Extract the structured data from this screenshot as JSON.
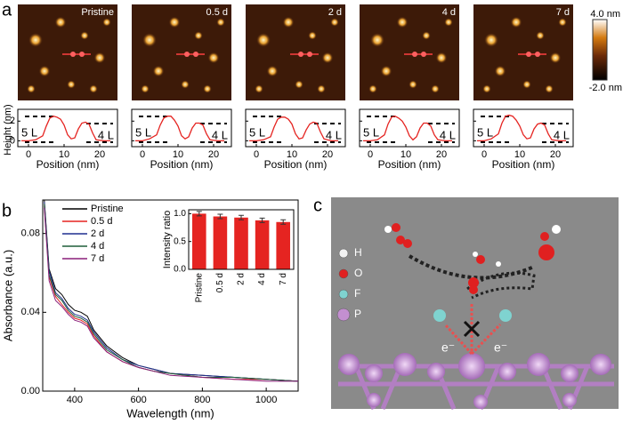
{
  "panel_labels": [
    "a",
    "b",
    "c"
  ],
  "afm": {
    "image_labels": [
      "Pristine",
      "0.5 d",
      "2 d",
      "4 d",
      "7 d"
    ],
    "colorbar": {
      "max_label": "4.0 nm",
      "min_label": "-2.0 nm"
    },
    "profile_y_label": "Height (nm)"
  },
  "chart_data": [
    {
      "type": "profile",
      "x_label": "Position (nm)",
      "xlim": [
        -3,
        25
      ],
      "xticks": [
        0,
        10,
        20
      ],
      "ylim": [
        -0.6,
        3.2
      ],
      "yticks": [
        0,
        2
      ],
      "annotations": [
        "5 L",
        "4 L"
      ],
      "x": [
        -2,
        0,
        2,
        4,
        5,
        6,
        7,
        8,
        9,
        10,
        11,
        12,
        13,
        14,
        15,
        16,
        17,
        18,
        19,
        21,
        23
      ],
      "series": [
        {
          "color": "#e52421",
          "values": [
            0,
            0,
            0.1,
            0.5,
            1.5,
            2.3,
            2.5,
            2.4,
            2.2,
            1.6,
            0.6,
            0.2,
            0.3,
            1.2,
            1.8,
            1.9,
            1.7,
            0.8,
            0.1,
            0,
            0
          ]
        }
      ]
    },
    {
      "type": "profile",
      "x_label": "Position (nm)",
      "xlim": [
        -3,
        25
      ],
      "xticks": [
        0,
        10,
        20
      ],
      "ylim": [
        -0.6,
        3.2
      ],
      "yticks": [
        0,
        2
      ],
      "annotations": [
        "5 L",
        "4 L"
      ],
      "x": [
        -2,
        0,
        2,
        4,
        5,
        6,
        7,
        8,
        9,
        10,
        11,
        12,
        13,
        14,
        15,
        16,
        17,
        18,
        19,
        21,
        23
      ],
      "series": [
        {
          "color": "#e52421",
          "values": [
            0,
            0,
            0.2,
            0.6,
            1.6,
            2.3,
            2.5,
            2.5,
            2.1,
            1.5,
            0.5,
            0.2,
            0.4,
            1.3,
            1.8,
            1.8,
            1.6,
            0.7,
            0.1,
            0,
            0
          ]
        }
      ]
    },
    {
      "type": "profile",
      "x_label": "Position (nm)",
      "xlim": [
        -3,
        25
      ],
      "xticks": [
        0,
        10,
        20
      ],
      "ylim": [
        -0.6,
        3.2
      ],
      "yticks": [
        0,
        2
      ],
      "annotations": [
        "5 L",
        "4 L"
      ],
      "x": [
        -2,
        0,
        2,
        4,
        5,
        6,
        7,
        8,
        9,
        10,
        11,
        12,
        13,
        14,
        15,
        16,
        17,
        18,
        19,
        21,
        23
      ],
      "series": [
        {
          "color": "#e52421",
          "values": [
            0,
            0,
            0.1,
            0.4,
            1.4,
            2.2,
            2.4,
            2.4,
            2.2,
            1.7,
            0.7,
            0.2,
            0.3,
            1.1,
            1.7,
            1.9,
            1.8,
            0.9,
            0.2,
            0,
            0
          ]
        }
      ]
    },
    {
      "type": "profile",
      "x_label": "Position (nm)",
      "xlim": [
        -3,
        25
      ],
      "xticks": [
        0,
        10,
        20
      ],
      "ylim": [
        -0.6,
        3.2
      ],
      "yticks": [
        0,
        2
      ],
      "annotations": [
        "5 L",
        "4 L"
      ],
      "x": [
        -2,
        0,
        2,
        4,
        5,
        6,
        7,
        8,
        9,
        10,
        11,
        12,
        13,
        14,
        15,
        16,
        17,
        18,
        19,
        21,
        23
      ],
      "series": [
        {
          "color": "#e52421",
          "values": [
            0,
            0,
            0.1,
            0.6,
            1.7,
            2.4,
            2.5,
            2.3,
            2.0,
            1.4,
            0.5,
            0.1,
            0.4,
            1.3,
            1.8,
            1.8,
            1.5,
            0.6,
            0.1,
            0,
            0
          ]
        }
      ]
    },
    {
      "type": "profile",
      "x_label": "Position (nm)",
      "xlim": [
        -3,
        25
      ],
      "xticks": [
        0,
        10,
        20
      ],
      "ylim": [
        -0.6,
        3.2
      ],
      "yticks": [
        0,
        2
      ],
      "annotations": [
        "5 L",
        "4 L"
      ],
      "x": [
        -2,
        0,
        2,
        4,
        5,
        6,
        7,
        8,
        9,
        10,
        11,
        12,
        13,
        14,
        15,
        16,
        17,
        18,
        19,
        21,
        23
      ],
      "series": [
        {
          "color": "#e52421",
          "values": [
            0,
            0,
            0.2,
            0.7,
            1.8,
            2.5,
            2.6,
            2.5,
            2.1,
            1.5,
            0.6,
            0.2,
            0.3,
            1.2,
            1.7,
            1.8,
            1.6,
            0.7,
            0.1,
            0,
            0
          ]
        }
      ]
    },
    {
      "type": "line",
      "x_label": "Wavelength (nm)",
      "y_label": "Absorbance (a.u.)",
      "xlim": [
        300,
        1100
      ],
      "xticks": [
        400,
        600,
        800,
        1000
      ],
      "ylim": [
        0,
        0.097
      ],
      "yticks": [
        {
          "value": 0,
          "label": "0.00"
        },
        0.04,
        0.08
      ],
      "legend": "upper-left",
      "x": [
        305,
        320,
        340,
        360,
        380,
        400,
        420,
        440,
        460,
        500,
        550,
        600,
        650,
        700,
        800,
        900,
        1000,
        1100
      ],
      "series": [
        {
          "name": "Pristine",
          "color": "#000000",
          "values": [
            0.097,
            0.062,
            0.052,
            0.049,
            0.044,
            0.041,
            0.04,
            0.038,
            0.031,
            0.023,
            0.017,
            0.013,
            0.011,
            0.009,
            0.008,
            0.007,
            0.006,
            0.005
          ]
        },
        {
          "name": "0.5 d",
          "color": "#e52421",
          "values": [
            0.094,
            0.058,
            0.048,
            0.044,
            0.04,
            0.037,
            0.036,
            0.034,
            0.028,
            0.02,
            0.015,
            0.012,
            0.01,
            0.009,
            0.007,
            0.006,
            0.006,
            0.005
          ]
        },
        {
          "name": "2 d",
          "color": "#1f2f8f",
          "values": [
            0.096,
            0.061,
            0.05,
            0.047,
            0.042,
            0.039,
            0.038,
            0.036,
            0.03,
            0.022,
            0.016,
            0.013,
            0.011,
            0.009,
            0.008,
            0.007,
            0.006,
            0.005
          ]
        },
        {
          "name": "4 d",
          "color": "#1e5e3a",
          "values": [
            0.095,
            0.059,
            0.049,
            0.046,
            0.041,
            0.038,
            0.037,
            0.035,
            0.029,
            0.021,
            0.016,
            0.012,
            0.01,
            0.009,
            0.007,
            0.007,
            0.006,
            0.005
          ]
        },
        {
          "name": "7 d",
          "color": "#8a1f7a",
          "values": [
            0.093,
            0.056,
            0.046,
            0.043,
            0.039,
            0.036,
            0.035,
            0.033,
            0.027,
            0.02,
            0.015,
            0.012,
            0.01,
            0.008,
            0.007,
            0.006,
            0.005,
            0.005
          ]
        }
      ]
    },
    {
      "type": "bar",
      "y_label": "Intensity ratio",
      "categories": [
        "Pristine",
        "0.5 d",
        "2 d",
        "4 d",
        "7 d"
      ],
      "values": [
        1.0,
        0.95,
        0.93,
        0.88,
        0.85
      ],
      "errors": [
        0.04,
        0.04,
        0.04,
        0.04,
        0.04
      ],
      "color": "#e52421",
      "ylim": [
        0,
        1.07
      ],
      "yticks": [
        {
          "value": 0,
          "label": "0.0"
        },
        0.5,
        {
          "value": 1,
          "label": "1.0"
        }
      ]
    }
  ],
  "diagram": {
    "legend": [
      {
        "label": "H",
        "color": "#f2f2f2"
      },
      {
        "label": "O",
        "color": "#e02020"
      },
      {
        "label": "F",
        "color": "#7fd3d0"
      },
      {
        "label": "P",
        "color": "#c38fd0"
      }
    ],
    "electron_labels": [
      "e⁻",
      "e⁻"
    ]
  }
}
